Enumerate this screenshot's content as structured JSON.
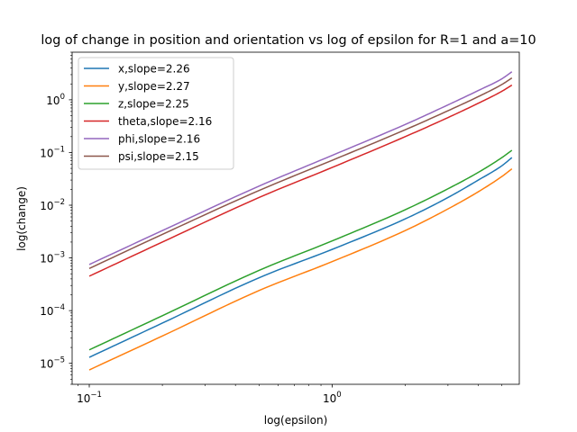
{
  "chart_data": {
    "type": "line",
    "title": "log of change in position and orientation vs  log of epsilon for R=1 and a=10",
    "xlabel": "log(epsilon)",
    "ylabel": "log(change)",
    "xscale": "log",
    "yscale": "log",
    "xlim": [
      0.085,
      5.9
    ],
    "ylim": [
      4e-06,
      8
    ],
    "xticks": [
      {
        "value": 0.1,
        "base": "10",
        "exp": "−1"
      },
      {
        "value": 1,
        "base": "10",
        "exp": "0"
      }
    ],
    "yticks": [
      {
        "value": 1e-05,
        "base": "10",
        "exp": "−5"
      },
      {
        "value": 0.0001,
        "base": "10",
        "exp": "−4"
      },
      {
        "value": 0.001,
        "base": "10",
        "exp": "−3"
      },
      {
        "value": 0.01,
        "base": "10",
        "exp": "−2"
      },
      {
        "value": 0.1,
        "base": "10",
        "exp": "−1"
      },
      {
        "value": 1,
        "base": "10",
        "exp": "0"
      }
    ],
    "grid": false,
    "legend_position": "upper-left",
    "series": [
      {
        "name": "x,slope=2.26",
        "color": "#1f77b4",
        "x": [
          0.1,
          0.2,
          0.5,
          1,
          2,
          3,
          4,
          5,
          5.5
        ],
        "y": [
          1.3e-05,
          5.8e-05,
          0.00042,
          0.00145,
          0.0055,
          0.014,
          0.03,
          0.056,
          0.08
        ]
      },
      {
        "name": "y,slope=2.27",
        "color": "#ff7f0e",
        "x": [
          0.1,
          0.2,
          0.5,
          1,
          2,
          3,
          4,
          5,
          5.5
        ],
        "y": [
          7.5e-06,
          3.3e-05,
          0.00024,
          0.00085,
          0.0033,
          0.0085,
          0.018,
          0.035,
          0.049
        ]
      },
      {
        "name": "z,slope=2.25",
        "color": "#2ca02c",
        "x": [
          0.1,
          0.2,
          0.5,
          1,
          2,
          3,
          4,
          5,
          5.5
        ],
        "y": [
          1.8e-05,
          8e-05,
          0.00058,
          0.0021,
          0.0082,
          0.0205,
          0.042,
          0.08,
          0.11
        ]
      },
      {
        "name": "theta,slope=2.16",
        "color": "#d62728",
        "x": [
          0.1,
          0.2,
          0.5,
          1,
          2,
          3,
          4,
          5,
          5.5
        ],
        "y": [
          0.00045,
          0.002,
          0.014,
          0.052,
          0.2,
          0.46,
          0.86,
          1.45,
          1.9
        ]
      },
      {
        "name": "phi,slope=2.16",
        "color": "#9467bd",
        "x": [
          0.1,
          0.2,
          0.5,
          1,
          2,
          3,
          4,
          5,
          5.5
        ],
        "y": [
          0.00075,
          0.0033,
          0.023,
          0.088,
          0.34,
          0.8,
          1.5,
          2.5,
          3.4
        ]
      },
      {
        "name": "psi,slope=2.15",
        "color": "#8c564b",
        "x": [
          0.1,
          0.2,
          0.5,
          1,
          2,
          3,
          4,
          5,
          5.5
        ],
        "y": [
          0.00063,
          0.0028,
          0.019,
          0.071,
          0.27,
          0.62,
          1.15,
          1.95,
          2.6
        ]
      }
    ]
  }
}
